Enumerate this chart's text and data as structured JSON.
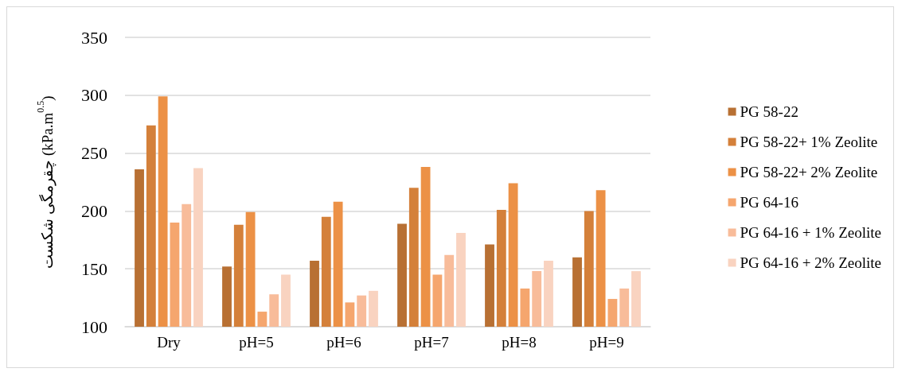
{
  "chart_data": {
    "type": "bar",
    "ylabel": "چقرمگی شکست (kPa.m$^{0.5}$)",
    "categories": [
      "Dry",
      "pH=5",
      "pH=6",
      "pH=7",
      "pH=8",
      "pH=9"
    ],
    "series": [
      {
        "name": "PG 58-22",
        "color": "#b87033",
        "values": [
          236,
          152,
          157,
          189,
          171,
          160
        ]
      },
      {
        "name": "PG 58-22+ 1% Zeolite",
        "color": "#d4803a",
        "values": [
          274,
          188,
          195,
          220,
          201,
          200
        ]
      },
      {
        "name": "PG 58-22+ 2% Zeolite",
        "color": "#ec9146",
        "values": [
          299,
          199,
          208,
          238,
          224,
          218
        ]
      },
      {
        "name": "PG 64-16",
        "color": "#f5a66e",
        "values": [
          190,
          113,
          121,
          145,
          133,
          124
        ]
      },
      {
        "name": "PG 64-16 + 1% Zeolite",
        "color": "#f8bc9a",
        "values": [
          206,
          128,
          127,
          162,
          148,
          133
        ]
      },
      {
        "name": "PG 64-16 + 2% Zeolite",
        "color": "#f9d3c0",
        "values": [
          237,
          145,
          131,
          181,
          157,
          148
        ]
      }
    ],
    "ylim": [
      100,
      350
    ],
    "yticks": [
      100,
      150,
      200,
      250,
      300,
      350
    ],
    "grid": "y",
    "legend": "right"
  }
}
